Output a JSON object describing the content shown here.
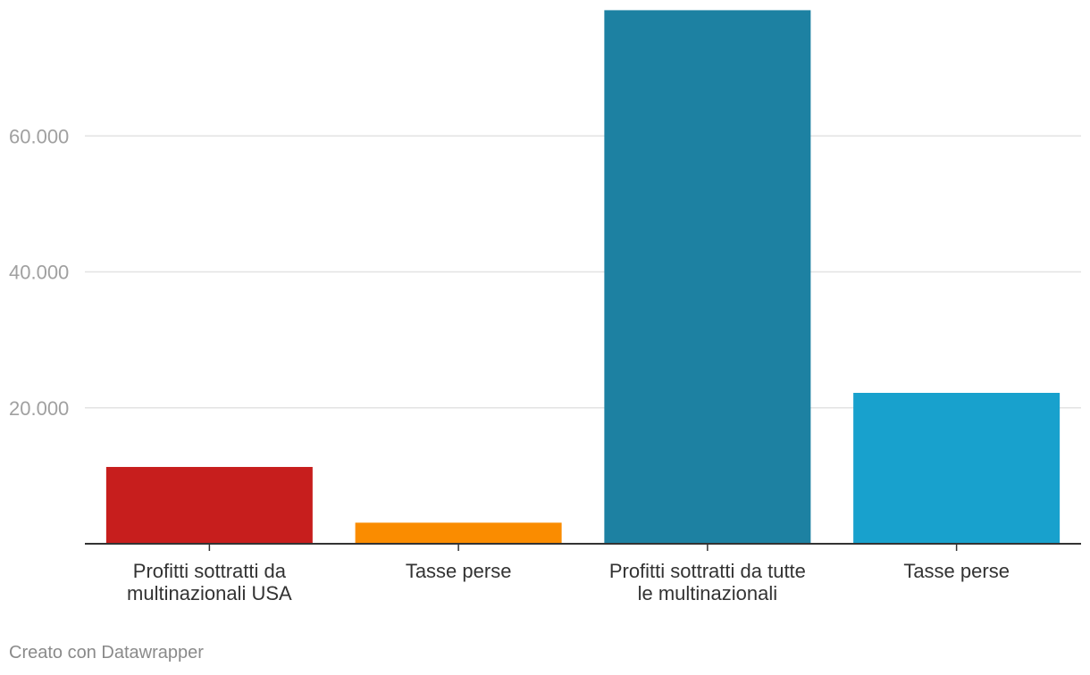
{
  "chart_data": {
    "type": "bar",
    "categories": [
      [
        "Profitti sottratti da",
        "multinazionali USA"
      ],
      [
        "Tasse perse"
      ],
      [
        "Profitti sottratti da tutte",
        "le multinazionali"
      ],
      [
        "Tasse perse"
      ]
    ],
    "values": [
      11300,
      3100,
      78500,
      22200
    ],
    "colors": [
      "#c71e1d",
      "#fa8c00",
      "#1d81a2",
      "#18a1cd"
    ],
    "yticks": [
      20000,
      40000,
      60000
    ],
    "ytick_labels": [
      "20.000",
      "40.000",
      "60.000"
    ],
    "ylim": [
      0,
      80000
    ],
    "grid": true,
    "title": "",
    "xlabel": "",
    "ylabel": ""
  },
  "footer": {
    "credit": "Creato con Datawrapper"
  }
}
